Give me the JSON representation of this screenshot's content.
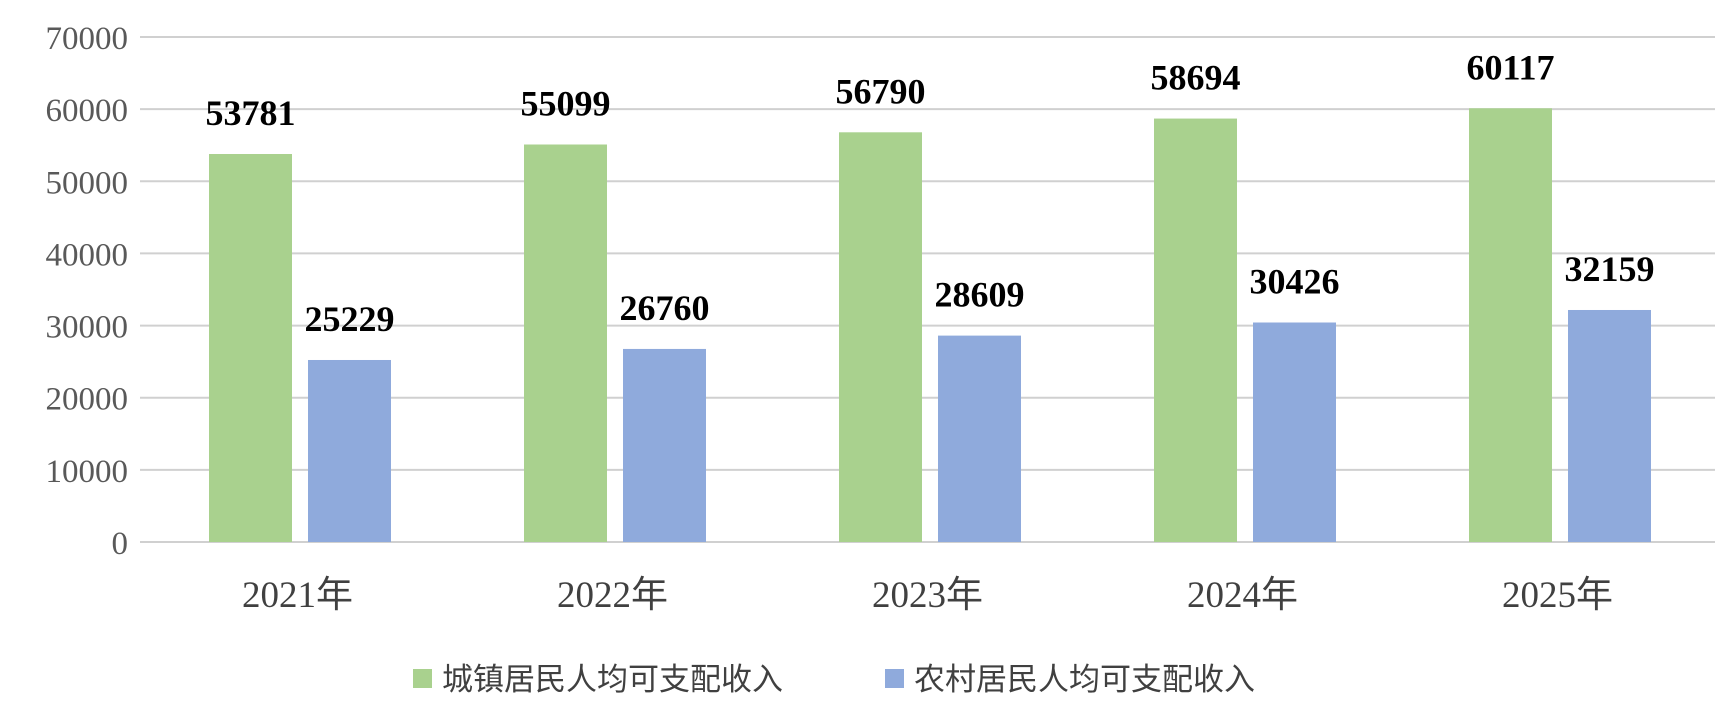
{
  "chart_data": {
    "type": "bar",
    "categories": [
      "2021年",
      "2022年",
      "2023年",
      "2024年",
      "2025年"
    ],
    "series": [
      {
        "name": "城镇居民人均可支配收入",
        "values": [
          53781,
          55099,
          56790,
          58694,
          60117
        ],
        "color": "#a9d18e"
      },
      {
        "name": "农村居民人均可支配收入",
        "values": [
          25229,
          26760,
          28609,
          30426,
          32159
        ],
        "color": "#8faadc"
      }
    ],
    "ylim": [
      0,
      70000
    ],
    "yticks": [
      0,
      10000,
      20000,
      30000,
      40000,
      50000,
      60000,
      70000
    ],
    "grid": true,
    "legend_position": "bottom",
    "data_labels": true
  }
}
